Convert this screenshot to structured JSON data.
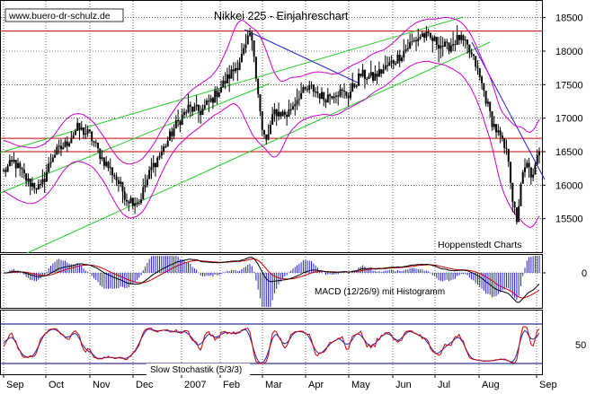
{
  "chart_data": {
    "type": "candlestick",
    "title": "Nikkei 225 - Einjahreschart",
    "source_label": "www.buero-dr-schulz.de",
    "provider_label": "Hoppenstedt Charts",
    "x_axis": {
      "months": [
        "Sep",
        "Oct",
        "Nov",
        "Dec",
        "2007",
        "Feb",
        "Mar",
        "Apr",
        "May",
        "Jun",
        "Jul",
        "Aug",
        "Sep"
      ]
    },
    "price_panel": {
      "ylim": [
        15000,
        18750
      ],
      "y_ticks": [
        "18500",
        "18000",
        "17500",
        "17000",
        "16500",
        "16000",
        "15500"
      ],
      "horizontal_lines": [
        18300,
        16700,
        16500
      ],
      "series": [
        {
          "name": "Nikkei 225",
          "color": "#000000"
        },
        {
          "name": "upper band",
          "color": "#d000d0"
        },
        {
          "name": "lower band",
          "color": "#d000d0"
        }
      ],
      "trend_channel_color": "#22cc22",
      "trend_line_color": "#2222cc"
    },
    "macd_panel": {
      "label": "MACD (12/26/9) mit Histogramm",
      "y_ticks": [
        "0"
      ],
      "macd_color": "#000000",
      "signal_color": "#cc0000",
      "histogram_color": "#2222cc"
    },
    "stochastic_panel": {
      "label": "Slow Stochastik (5/3/3)",
      "y_ticks": [
        "50"
      ],
      "k_color": "#cc0000",
      "d_color": "#2222cc",
      "band_color": "#000080"
    },
    "close_anchors": [
      {
        "t": 0,
        "v": 16200
      },
      {
        "t": 5,
        "v": 16350
      },
      {
        "t": 12,
        "v": 16050
      },
      {
        "t": 18,
        "v": 15950
      },
      {
        "t": 24,
        "v": 16450
      },
      {
        "t": 30,
        "v": 16600
      },
      {
        "t": 36,
        "v": 16850
      },
      {
        "t": 42,
        "v": 16750
      },
      {
        "t": 48,
        "v": 16400
      },
      {
        "t": 54,
        "v": 16150
      },
      {
        "t": 60,
        "v": 15800
      },
      {
        "t": 66,
        "v": 15750
      },
      {
        "t": 72,
        "v": 16250
      },
      {
        "t": 78,
        "v": 16550
      },
      {
        "t": 84,
        "v": 16900
      },
      {
        "t": 90,
        "v": 17150
      },
      {
        "t": 96,
        "v": 17100
      },
      {
        "t": 102,
        "v": 17300
      },
      {
        "t": 108,
        "v": 17550
      },
      {
        "t": 114,
        "v": 17800
      },
      {
        "t": 118,
        "v": 18050
      },
      {
        "t": 120,
        "v": 18250
      },
      {
        "t": 122,
        "v": 17950
      },
      {
        "t": 124,
        "v": 17400
      },
      {
        "t": 126,
        "v": 16800
      },
      {
        "t": 128,
        "v": 16650
      },
      {
        "t": 132,
        "v": 17100
      },
      {
        "t": 138,
        "v": 17050
      },
      {
        "t": 144,
        "v": 17350
      },
      {
        "t": 150,
        "v": 17450
      },
      {
        "t": 156,
        "v": 17300
      },
      {
        "t": 162,
        "v": 17400
      },
      {
        "t": 168,
        "v": 17350
      },
      {
        "t": 174,
        "v": 17650
      },
      {
        "t": 180,
        "v": 17600
      },
      {
        "t": 186,
        "v": 17750
      },
      {
        "t": 192,
        "v": 17900
      },
      {
        "t": 198,
        "v": 18100
      },
      {
        "t": 204,
        "v": 18250
      },
      {
        "t": 210,
        "v": 18150
      },
      {
        "t": 216,
        "v": 18050
      },
      {
        "t": 222,
        "v": 18200
      },
      {
        "t": 226,
        "v": 18050
      },
      {
        "t": 230,
        "v": 17800
      },
      {
        "t": 234,
        "v": 17400
      },
      {
        "t": 238,
        "v": 16950
      },
      {
        "t": 242,
        "v": 16700
      },
      {
        "t": 246,
        "v": 16400
      },
      {
        "t": 248,
        "v": 15800
      },
      {
        "t": 250,
        "v": 15400
      },
      {
        "t": 252,
        "v": 16050
      },
      {
        "t": 255,
        "v": 16300
      },
      {
        "t": 258,
        "v": 16100
      },
      {
        "t": 261,
        "v": 16550
      }
    ]
  }
}
